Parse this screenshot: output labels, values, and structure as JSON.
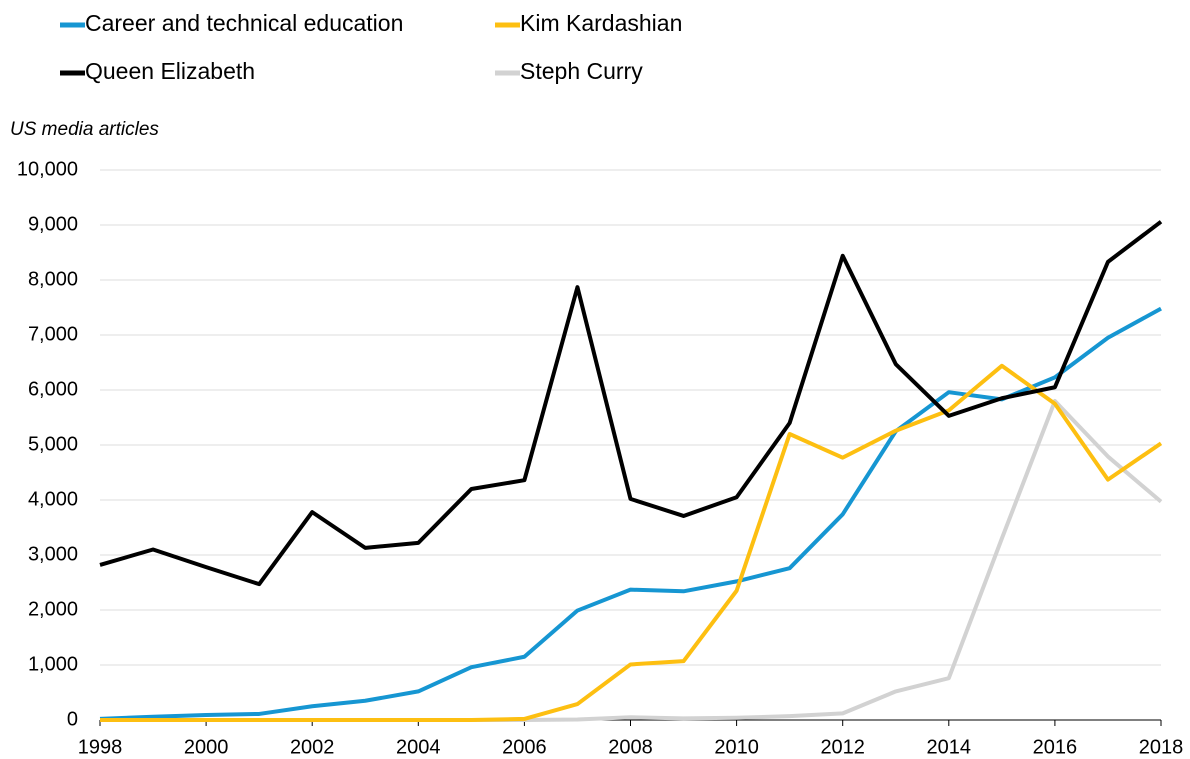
{
  "chart_data": {
    "type": "line",
    "y_label": "US media articles",
    "x": [
      1998,
      1999,
      2000,
      2001,
      2002,
      2003,
      2004,
      2005,
      2006,
      2007,
      2008,
      2009,
      2010,
      2011,
      2012,
      2013,
      2014,
      2015,
      2016,
      2017,
      2018
    ],
    "series": [
      {
        "name": "Career and technical education",
        "color": "#1696d2",
        "values": [
          20,
          60,
          90,
          110,
          250,
          350,
          520,
          960,
          1150,
          1990,
          2370,
          2340,
          2520,
          2760,
          3740,
          5250,
          5960,
          5830,
          6230,
          6950,
          7480
        ]
      },
      {
        "name": "Kim Kardashian",
        "color": "#fdbf11",
        "values": [
          0,
          0,
          0,
          0,
          0,
          0,
          0,
          0,
          20,
          290,
          1010,
          1070,
          2350,
          5200,
          4770,
          5260,
          5630,
          6440,
          5750,
          4370,
          5030
        ]
      },
      {
        "name": "Queen Elizabeth",
        "color": "#000000",
        "values": [
          2820,
          3100,
          2780,
          2470,
          3780,
          3130,
          3220,
          4200,
          4360,
          7870,
          4020,
          3710,
          4050,
          5400,
          8440,
          6470,
          5530,
          5850,
          6050,
          8330,
          9060
        ]
      },
      {
        "name": "Steph Curry",
        "color": "#d2d2d2",
        "values": [
          0,
          0,
          0,
          0,
          0,
          0,
          0,
          0,
          0,
          10,
          50,
          30,
          40,
          70,
          120,
          520,
          760,
          3300,
          5800,
          4790,
          3970
        ]
      }
    ],
    "xlim": [
      1998,
      2018
    ],
    "xticks": [
      1998,
      2000,
      2002,
      2004,
      2006,
      2008,
      2010,
      2012,
      2014,
      2016,
      2018
    ],
    "ylim": [
      0,
      10000
    ],
    "yticks": [
      0,
      {
        "value": 1000,
        "label": "1,000"
      },
      {
        "value": 2000,
        "label": "2,000"
      },
      {
        "value": 3000,
        "label": "3,000"
      },
      {
        "value": 4000,
        "label": "4,000"
      },
      {
        "value": 5000,
        "label": "5,000"
      },
      {
        "value": 6000,
        "label": "6,000"
      },
      {
        "value": 7000,
        "label": "7,000"
      },
      {
        "value": 8000,
        "label": "8,000"
      },
      {
        "value": 9000,
        "label": "9,000"
      },
      {
        "value": 10000,
        "label": "10,000"
      }
    ],
    "grid": true
  }
}
